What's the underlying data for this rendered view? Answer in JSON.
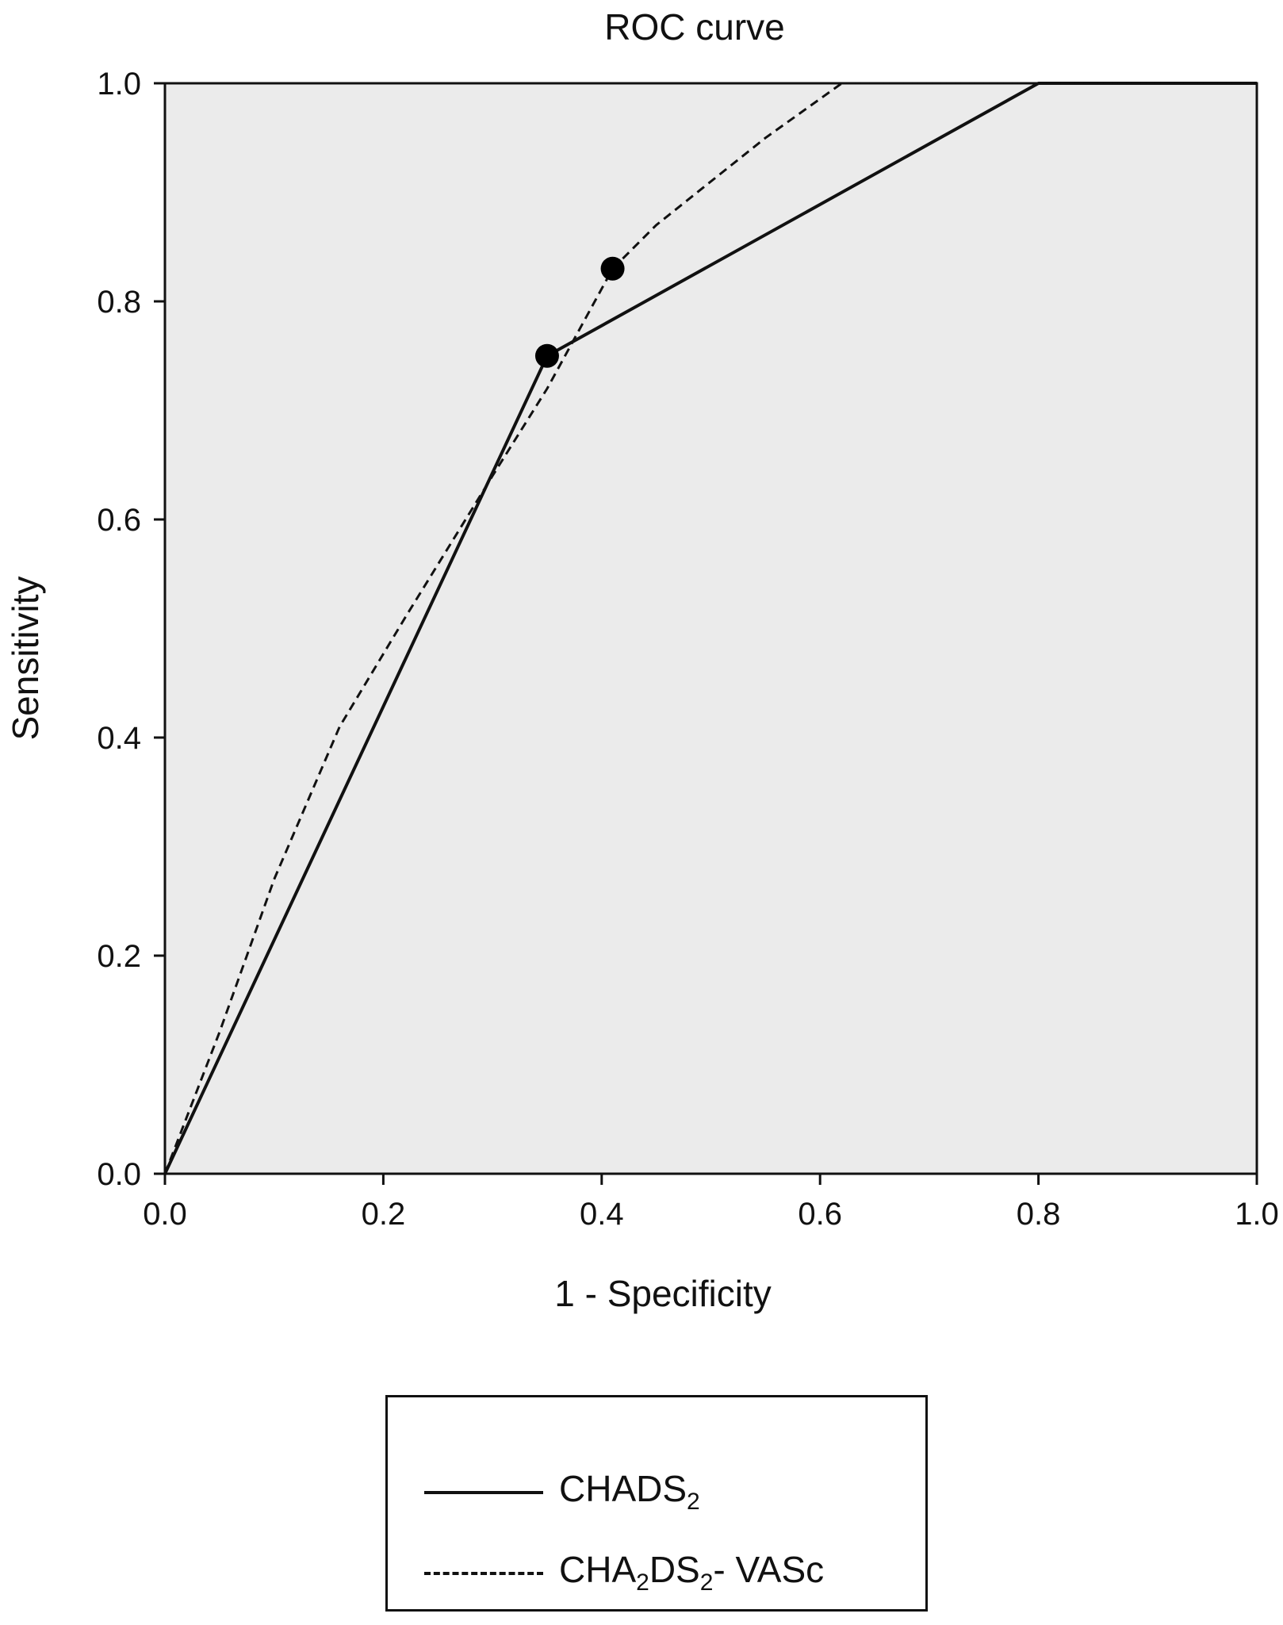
{
  "chart_data": {
    "type": "line",
    "title": "ROC curve",
    "xlabel": "1 - Specificity",
    "ylabel": "Sensitivity",
    "xlim": [
      0.0,
      1.0
    ],
    "ylim": [
      0.0,
      1.0
    ],
    "xticks": [
      "0.0",
      "0.2",
      "0.4",
      "0.6",
      "0.8",
      "1.0"
    ],
    "yticks": [
      "0.0",
      "0.2",
      "0.4",
      "0.6",
      "0.8",
      "1.0"
    ],
    "grid": false,
    "plot_background": "#ebebeb",
    "legend_position": "bottom",
    "series": [
      {
        "name": "CHADS2",
        "legend_parts": [
          "CHADS",
          "2",
          ""
        ],
        "style": "solid",
        "color": "#111111",
        "x": [
          0.0,
          0.35,
          0.8,
          1.0
        ],
        "y": [
          0.0,
          0.75,
          1.0,
          1.0
        ],
        "markers": [
          {
            "x": 0.35,
            "y": 0.75
          }
        ]
      },
      {
        "name": "CHA2DS2- VASc",
        "legend_parts": [
          "CHA",
          "2",
          "DS",
          "2",
          "- VASc"
        ],
        "style": "dashed",
        "color": "#111111",
        "x": [
          0.0,
          0.05,
          0.1,
          0.16,
          0.22,
          0.3,
          0.35,
          0.41,
          0.45,
          0.55,
          0.62,
          1.0
        ],
        "y": [
          0.0,
          0.13,
          0.27,
          0.41,
          0.51,
          0.64,
          0.72,
          0.83,
          0.87,
          0.95,
          1.0,
          1.0
        ],
        "markers": [
          {
            "x": 0.41,
            "y": 0.83
          }
        ]
      }
    ]
  }
}
